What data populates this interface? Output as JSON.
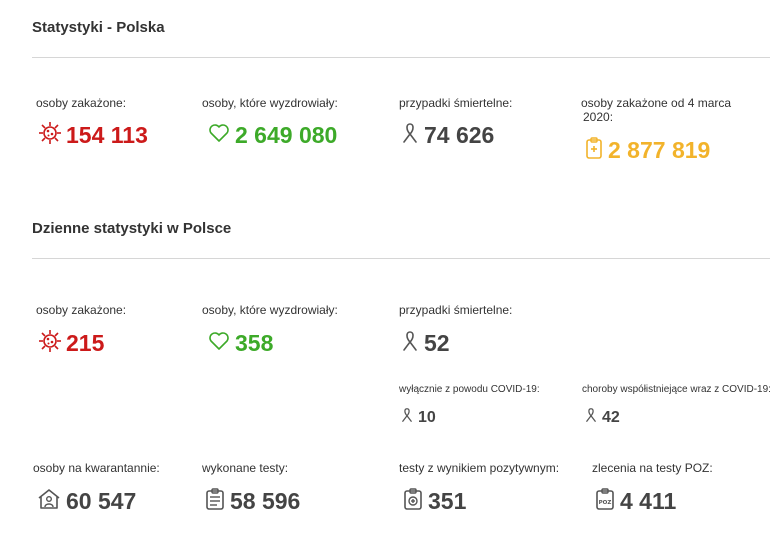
{
  "section1": {
    "title": "Statystyki - Polska",
    "infected_label": "osoby zakażone:",
    "infected_value": "154 113",
    "recovered_label": "osoby, które wyzdrowiały:",
    "recovered_value": "2 649 080",
    "deaths_label": "przypadki śmiertelne:",
    "deaths_value": "74 626",
    "since_label_line1": "osoby zakażone od 4 marca",
    "since_label_line2": "2020:",
    "since_value": "2 877 819"
  },
  "section2": {
    "title": "Dzienne statystyki w Polsce",
    "infected_label": "osoby zakażone:",
    "infected_value": "215",
    "recovered_label": "osoby, które wyzdrowiały:",
    "recovered_value": "358",
    "deaths_label": "przypadki śmiertelne:",
    "deaths_value": "52",
    "covid_only_label": "wyłącznie z powodu COVID-19:",
    "covid_only_value": "10",
    "comorbid_label": "choroby współistniejące wraz z COVID-19:",
    "comorbid_value": "42",
    "quarantine_label": "osoby na kwarantannie:",
    "quarantine_value": "60 547",
    "tests_label": "wykonane testy:",
    "tests_value": "58 596",
    "positive_label": "testy z wynikiem pozytywnym:",
    "positive_value": "351",
    "poz_label": "zlecenia na testy POZ:",
    "poz_value": "4 411"
  },
  "colors": {
    "red": "#cc1a1a",
    "green": "#3daa29",
    "gray": "#444444",
    "orange": "#f2b32b"
  },
  "icons": [
    "virus-icon",
    "heart-icon",
    "ribbon-icon",
    "clipboard-icon",
    "house-person-icon",
    "test-list-icon",
    "test-tube-icon",
    "poz-referral-icon"
  ]
}
